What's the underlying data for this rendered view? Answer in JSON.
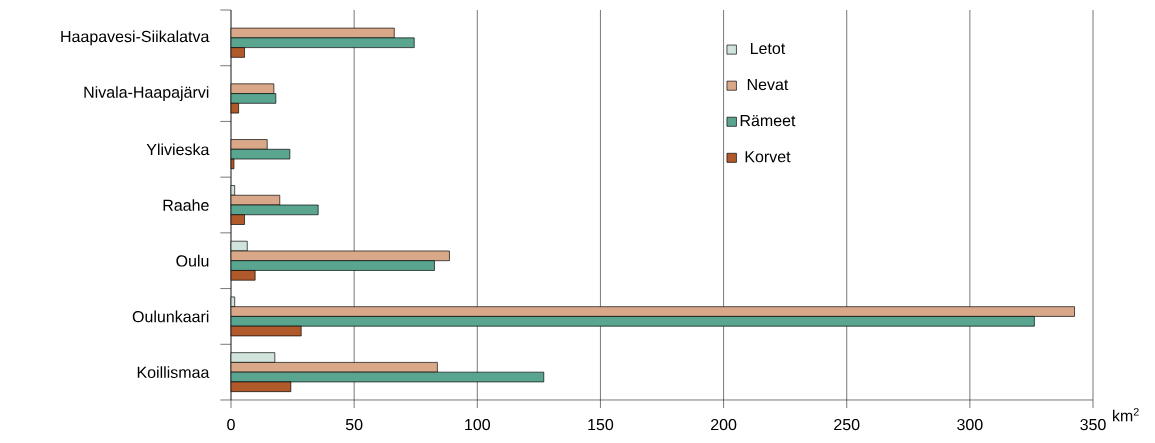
{
  "chart_data": {
    "type": "bar",
    "orientation": "horizontal",
    "categories": [
      "Haapavesi-Siikalatva",
      "Nivala-Haapajärvi",
      "Ylivieska",
      "Raahe",
      "Oulu",
      "Oulunkaari",
      "Koillismaa"
    ],
    "series": [
      {
        "name": "Letot",
        "color": "#d0e4dc",
        "values": [
          null,
          null,
          null,
          1.5,
          6.6,
          1.5,
          17.8
        ]
      },
      {
        "name": "Nevat",
        "color": "#d8a888",
        "values": [
          66.3,
          17.4,
          14.7,
          19.8,
          88.7,
          342.5,
          83.8
        ]
      },
      {
        "name": "Rämeet",
        "color": "#5aa590",
        "values": [
          74.4,
          18.2,
          23.9,
          35.4,
          82.6,
          326.2,
          127.0
        ]
      },
      {
        "name": "Korvet",
        "color": "#b05a2c",
        "values": [
          5.5,
          3.1,
          1.2,
          5.5,
          9.8,
          28.5,
          24.3
        ]
      }
    ],
    "xlabel": "km$^{2}$",
    "xlim": [
      0,
      350
    ],
    "xticks": [
      0,
      50,
      100,
      150,
      200,
      250,
      300,
      350
    ],
    "grid": "x",
    "legend": "top right"
  }
}
